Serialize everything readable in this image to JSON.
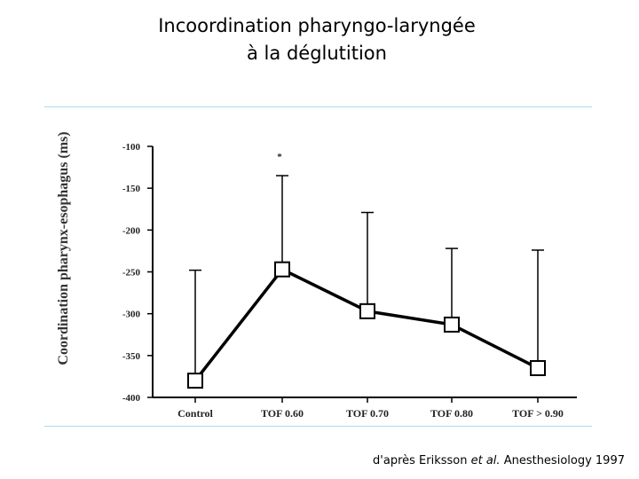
{
  "title": {
    "line1": "Incoordination pharyngo-laryngée",
    "line2": "à la déglutition"
  },
  "citation": {
    "prefix": "d'après Eriksson ",
    "italic": "et al.",
    "suffix": " Anesthesiology 1997"
  },
  "colors": {
    "rule": "#a8dde8",
    "line": "#000000",
    "marker_fill": "#ffffff"
  },
  "chart_data": {
    "type": "line",
    "title": "",
    "ylabel": "Coordination  pharynx-esophagus  (ms)",
    "xlabel": "",
    "categories": [
      "Control",
      "TOF 0.60",
      "TOF 0.70",
      "TOF 0.80",
      "TOF > 0.90"
    ],
    "series": [
      {
        "values": [
          -380,
          -247,
          -297,
          -313,
          -365
        ],
        "error_upper": [
          -248,
          -135,
          -179,
          -222,
          -224
        ]
      }
    ],
    "annotations": [
      {
        "category": "TOF 0.60",
        "text": "*"
      }
    ],
    "ylim": [
      -400,
      -100
    ],
    "yticks": [
      -100,
      -150,
      -200,
      -250,
      -300,
      -350,
      -400
    ],
    "grid": false,
    "legend": "none"
  }
}
